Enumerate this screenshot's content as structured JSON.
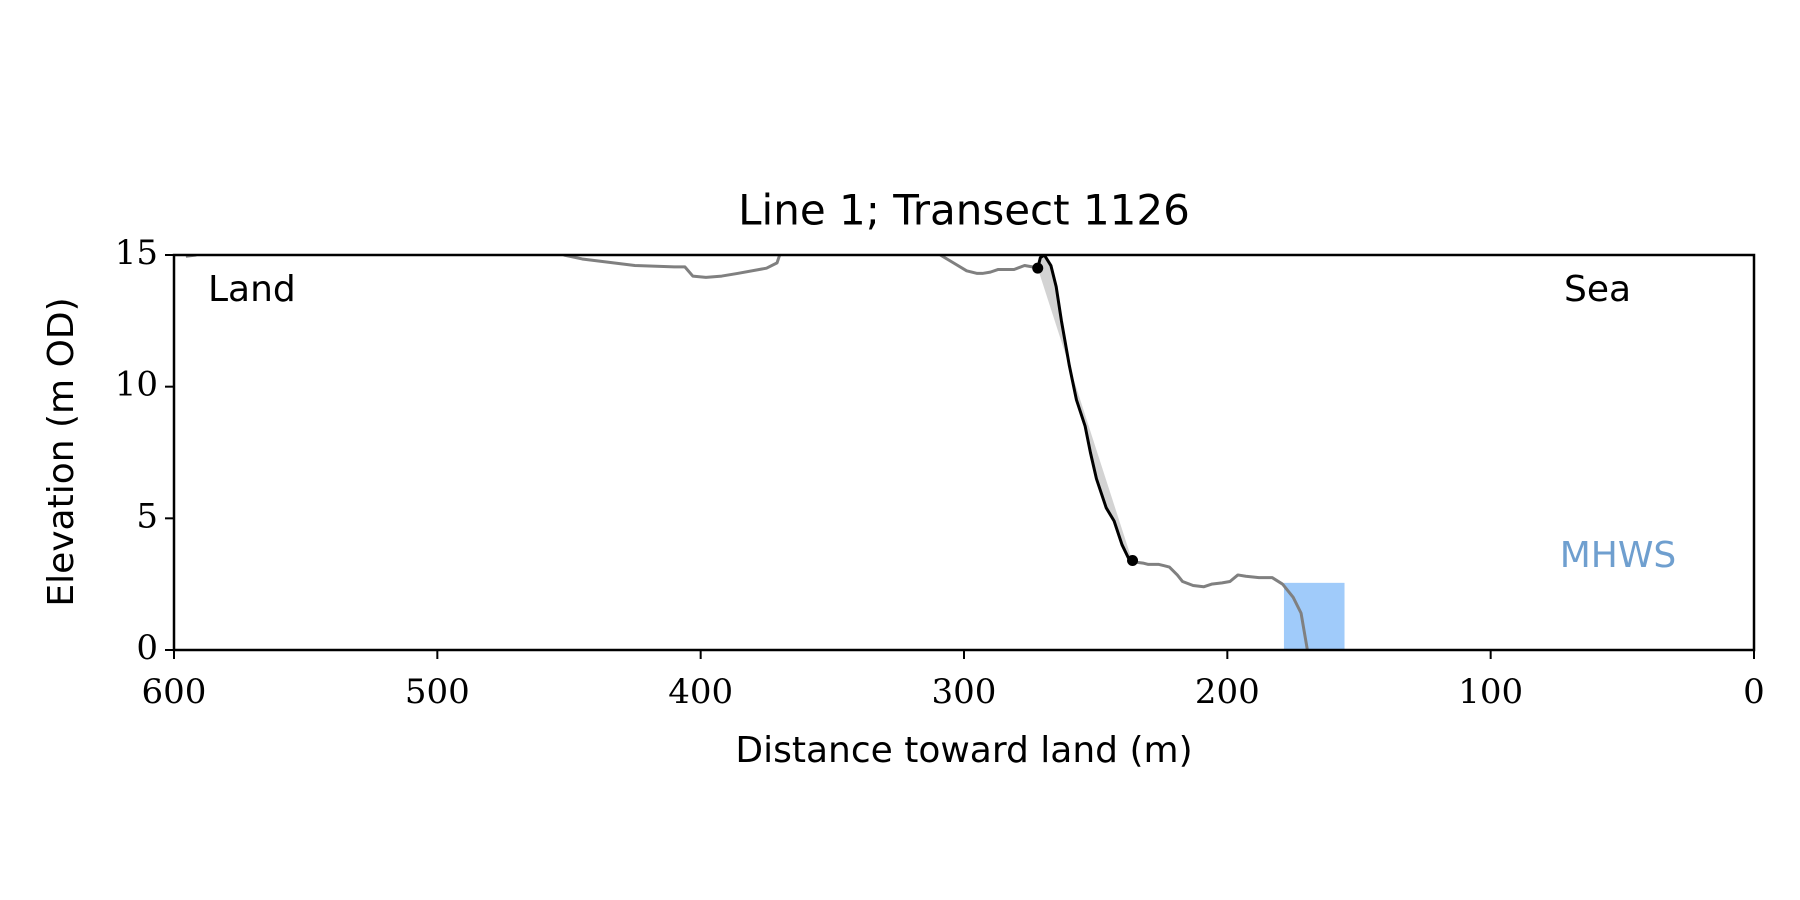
{
  "chart_data": {
    "type": "line",
    "title": "Line 1; Transect 1126",
    "xlabel": "Distance toward land (m)",
    "ylabel": "Elevation (m OD)",
    "xlim": [
      600,
      0
    ],
    "ylim": [
      0,
      15
    ],
    "xticks": [
      600,
      500,
      400,
      300,
      200,
      100,
      0
    ],
    "yticks": [
      0,
      5,
      10,
      15
    ],
    "annotations": [
      "Land",
      "Sea"
    ],
    "mhws": {
      "label": "MHWS",
      "color": "#a0cbfa",
      "label_color": "#6f9fcf",
      "level": 2.55,
      "x": [
        178.5,
        155.5
      ]
    },
    "series": [
      {
        "color": "#808080",
        "x": [
          595.5,
          591.5,
          null,
          452,
          445,
          425,
          410,
          406,
          403,
          398,
          392,
          386,
          375,
          371,
          370,
          null,
          309,
          304,
          299,
          295,
          293,
          290,
          287,
          283,
          281,
          277,
          274,
          272,
          null,
          236,
          232,
          230,
          226,
          224,
          222,
          219,
          217,
          213,
          209,
          206,
          202,
          199,
          196,
          193,
          188,
          183,
          179,
          175,
          172,
          169.6
        ],
        "values": [
          14.95,
          15,
          null,
          15,
          14.85,
          14.6,
          14.55,
          14.55,
          14.2,
          14.15,
          14.2,
          14.3,
          14.5,
          14.7,
          15,
          null,
          15,
          14.7,
          14.4,
          14.3,
          14.3,
          14.35,
          14.45,
          14.45,
          14.45,
          14.6,
          14.55,
          14.5,
          null,
          3.35,
          3.3,
          3.25,
          3.25,
          3.2,
          3.15,
          2.85,
          2.6,
          2.45,
          2.4,
          2.5,
          2.55,
          2.6,
          2.85,
          2.8,
          2.75,
          2.75,
          2.5,
          2.0,
          1.4,
          0
        ]
      },
      {
        "color": "#000000",
        "fill_color": "#d3d3d3",
        "x": [
          272,
          271,
          269.5,
          267,
          265,
          263,
          260,
          257.3,
          254,
          252,
          249.7,
          246,
          243,
          240,
          237.6,
          236
        ],
        "values": [
          14.5,
          14.9,
          15,
          14.6,
          13.8,
          12.5,
          10.8,
          9.5,
          8.5,
          7.5,
          6.5,
          5.4,
          4.9,
          4.0,
          3.5,
          3.35
        ],
        "markers": {
          "x": [
            272,
            236
          ],
          "values": [
            14.5,
            3.4
          ]
        }
      }
    ]
  }
}
